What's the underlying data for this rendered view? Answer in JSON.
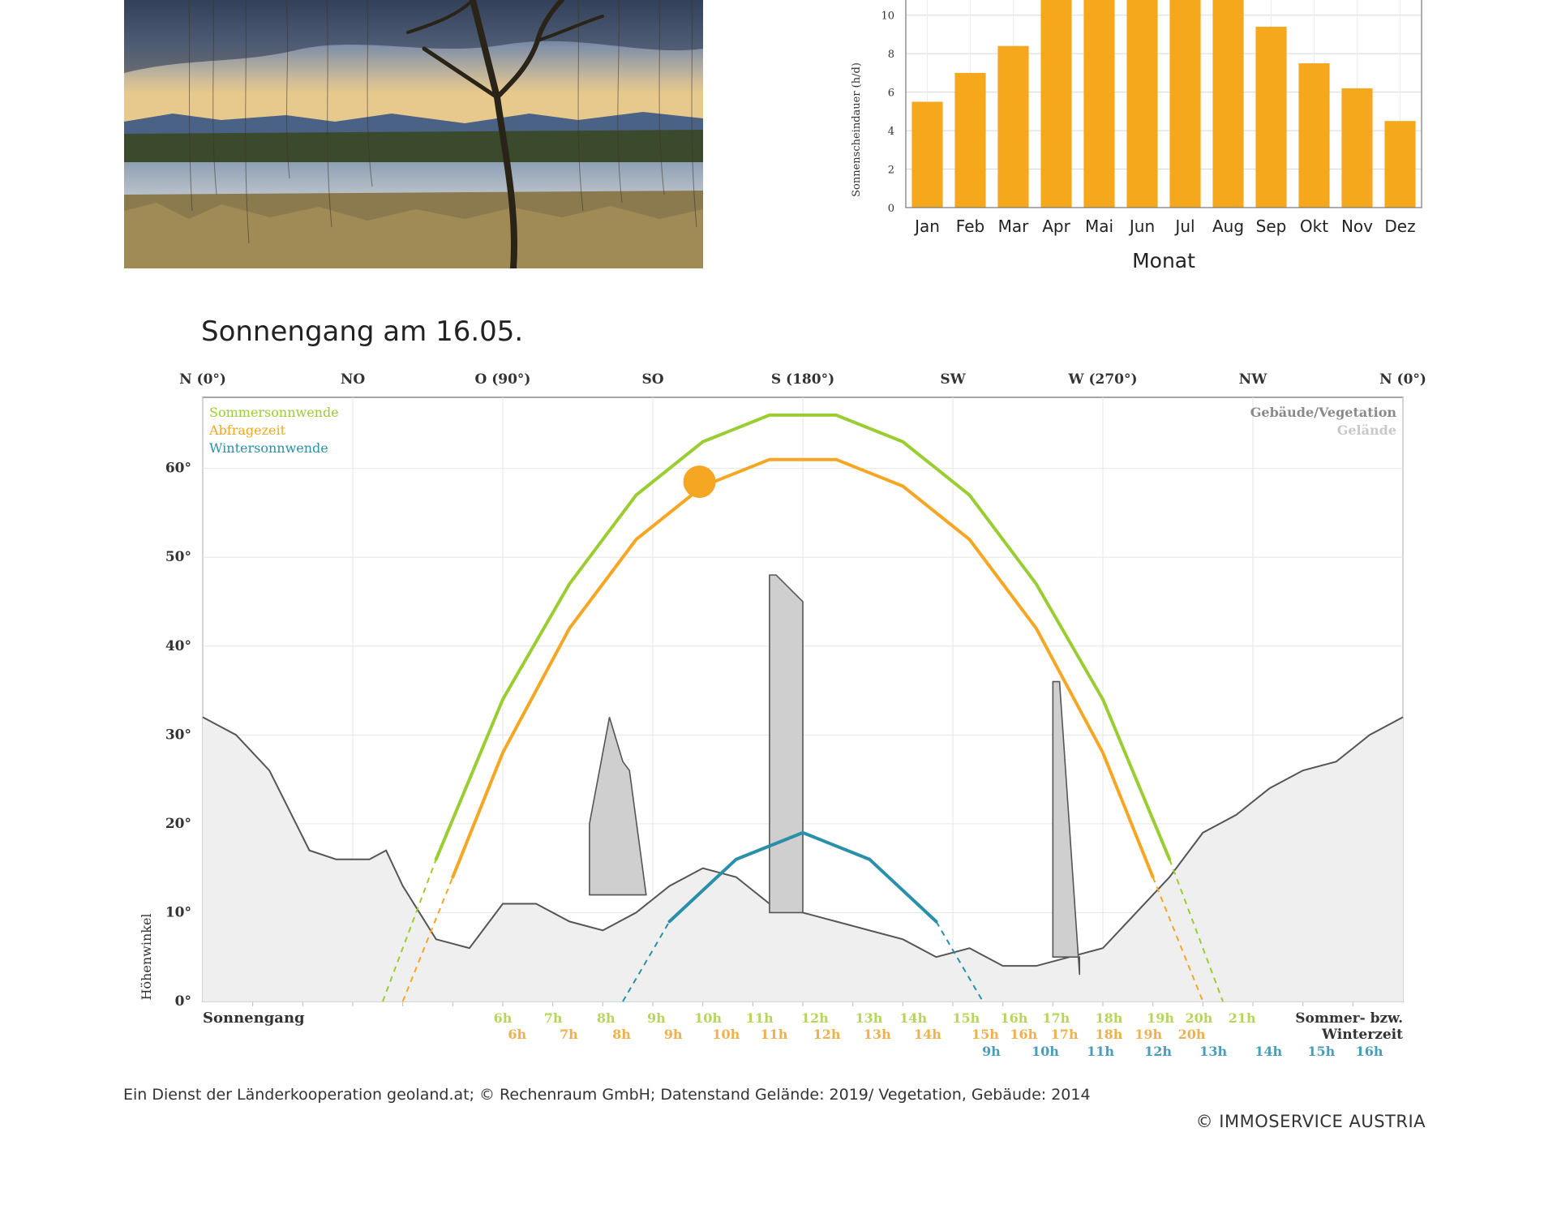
{
  "photo": {
    "subject": "lake-landscape-with-birch-tree"
  },
  "sunshine_chart": {
    "xlabel": "Monat",
    "ylabel": "Sonnenscheindauer (h/d)",
    "y_ticks": [
      "0",
      "2",
      "4",
      "6",
      "8",
      "10"
    ],
    "bar_color": "#f5a81c"
  },
  "sun_path": {
    "title": "Sonnengang am 16.05.",
    "directions": [
      "N (0°)",
      "NO",
      "O (90°)",
      "SO",
      "S (180°)",
      "SW",
      "W (270°)",
      "NW",
      "N (0°)"
    ],
    "y_ticks": [
      "0°",
      "10°",
      "20°",
      "30°",
      "40°",
      "50°",
      "60°"
    ],
    "ylabel": "Höhenwinkel",
    "legend_left": [
      {
        "label": "Sommersonnwende",
        "color": "#9acd32"
      },
      {
        "label": "Abfragezeit",
        "color": "#f5a623"
      },
      {
        "label": "Wintersonnwende",
        "color": "#2a8fa8"
      }
    ],
    "legend_right": [
      {
        "label": "Gebäude/Vegetation",
        "color": "#8a8a8a"
      },
      {
        "label": "Gelände",
        "color": "#c8c8c8"
      }
    ],
    "bottom_left_label": "Sonnengang",
    "bottom_right_label_1": "Sommer- bzw.",
    "bottom_right_label_2": "Winterzeit",
    "summer_times": [
      "6h",
      "7h",
      "8h",
      "9h",
      "10h",
      "11h",
      "12h",
      "13h",
      "14h",
      "15h",
      "16h",
      "17h",
      "18h",
      "19h",
      "20h",
      "21h"
    ],
    "query_times": [
      "6h",
      "7h",
      "8h",
      "9h",
      "10h",
      "11h",
      "12h",
      "13h",
      "14h",
      "15h",
      "16h",
      "17h",
      "18h",
      "19h",
      "20h"
    ],
    "winter_times": [
      "9h",
      "10h",
      "11h",
      "12h",
      "13h",
      "14h",
      "15h",
      "16h"
    ]
  },
  "chart_data": [
    {
      "type": "bar",
      "xlabel": "Monat",
      "ylabel": "Sonnenscheindauer (h/d)",
      "categories": [
        "Jan",
        "Feb",
        "Mar",
        "Apr",
        "Mai",
        "Jun",
        "Jul",
        "Aug",
        "Sep",
        "Okt",
        "Nov",
        "Dez"
      ],
      "values": [
        5.5,
        7.0,
        8.4,
        11.0,
        11.0,
        11.0,
        11.0,
        11.0,
        9.4,
        7.5,
        6.2,
        4.5
      ],
      "ylim": [
        0,
        11
      ],
      "grid": true
    },
    {
      "type": "line",
      "title": "Sonnengang am 16.05.",
      "ylabel": "Höhenwinkel",
      "xlim": [
        0,
        360
      ],
      "ylim": [
        0,
        68
      ],
      "grid": true,
      "legend": "top-left",
      "series": [
        {
          "name": "Sommersonnwende",
          "color": "#9acd32",
          "x": [
            54,
            70,
            90,
            110,
            130,
            150,
            170,
            180,
            190,
            210,
            230,
            250,
            270,
            290,
            306
          ],
          "y": [
            0,
            16,
            34,
            47,
            57,
            63,
            66,
            66,
            66,
            63,
            57,
            47,
            34,
            16,
            0
          ]
        },
        {
          "name": "Abfragezeit",
          "color": "#f5a623",
          "x": [
            60,
            75,
            90,
            110,
            130,
            150,
            170,
            180,
            190,
            210,
            230,
            250,
            270,
            285,
            300
          ],
          "y": [
            0,
            14,
            28,
            42,
            52,
            58,
            61,
            61,
            61,
            58,
            52,
            42,
            28,
            14,
            0
          ]
        },
        {
          "name": "Wintersonnwende",
          "color": "#2a8fa8",
          "x": [
            126,
            140,
            160,
            180,
            200,
            220,
            234
          ],
          "y": [
            0,
            9,
            16,
            19,
            16,
            9,
            0
          ]
        },
        {
          "name": "Gelände",
          "color": "#c8c8c8",
          "x": [
            0,
            10,
            20,
            32,
            40,
            50,
            55,
            60,
            70,
            80,
            90,
            100,
            110,
            120,
            130,
            140,
            150,
            160,
            170,
            180,
            190,
            200,
            210,
            220,
            230,
            240,
            250,
            260,
            270,
            280,
            290,
            300,
            310,
            320,
            330,
            340,
            350,
            360
          ],
          "y": [
            32,
            30,
            26,
            17,
            16,
            16,
            17,
            13,
            7,
            6,
            11,
            11,
            9,
            8,
            10,
            13,
            15,
            14,
            11,
            10,
            9,
            8,
            7,
            5,
            6,
            4,
            4,
            5,
            6,
            10,
            14,
            19,
            21,
            24,
            26,
            27,
            30,
            32
          ]
        },
        {
          "name": "Gebäude/Vegetation",
          "color": "#8a8a8a",
          "x": [
            116,
            122,
            126,
            128,
            133,
            170,
            172,
            180,
            255,
            257,
            263
          ],
          "y": [
            20,
            32,
            27,
            26,
            12,
            48,
            48,
            45,
            36,
            36,
            3
          ]
        }
      ],
      "current_position": {
        "x": 149,
        "y": 58.5
      }
    }
  ],
  "footer": {
    "text": "Ein Dienst der Länderkooperation geoland.at; © Rechenraum GmbH; Datenstand Gelände: 2019/ Vegetation, Gebäude: 2014",
    "copyright": "© IMMOSERVICE AUSTRIA"
  }
}
